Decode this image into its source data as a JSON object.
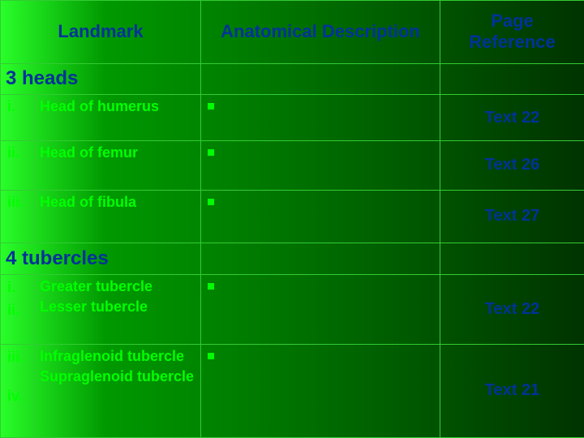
{
  "colors": {
    "accent_blue": "#003399",
    "accent_green_text": "#00ff00",
    "border_green": "#33cc33",
    "bg_gradient_left": "#2aff2a",
    "bg_gradient_right": "#003300"
  },
  "typography": {
    "font_family": "Comic Sans MS",
    "header_fontsize_pt": 17,
    "section_fontsize_pt": 18,
    "body_fontsize_pt": 14,
    "page_fontsize_pt": 15
  },
  "header": {
    "landmark": "Landmark",
    "description": "Anatomical Description",
    "page": "Page Reference"
  },
  "sections": [
    {
      "title": "3 heads",
      "rows": [
        {
          "nums": [
            "i."
          ],
          "landmarks": [
            "Head of humerus"
          ],
          "desc": "",
          "page": "Text 22"
        },
        {
          "nums": [
            "ii."
          ],
          "landmarks": [
            "Head of femur"
          ],
          "desc": "",
          "page": "Text 26"
        },
        {
          "nums": [
            "iii."
          ],
          "landmarks": [
            "Head of fibula"
          ],
          "desc": "",
          "page": "Text 27"
        }
      ]
    },
    {
      "title": "4 tubercles",
      "rows": [
        {
          "nums": [
            "i.",
            "ii."
          ],
          "landmarks": [
            "Greater tubercle",
            "Lesser tubercle"
          ],
          "desc": "",
          "page": "Text 22"
        },
        {
          "nums": [
            "iii.",
            "iv."
          ],
          "landmarks": [
            "Infraglenoid tubercle",
            "Supraglenoid tubercle"
          ],
          "desc": "",
          "page": "Text 21"
        }
      ]
    }
  ]
}
